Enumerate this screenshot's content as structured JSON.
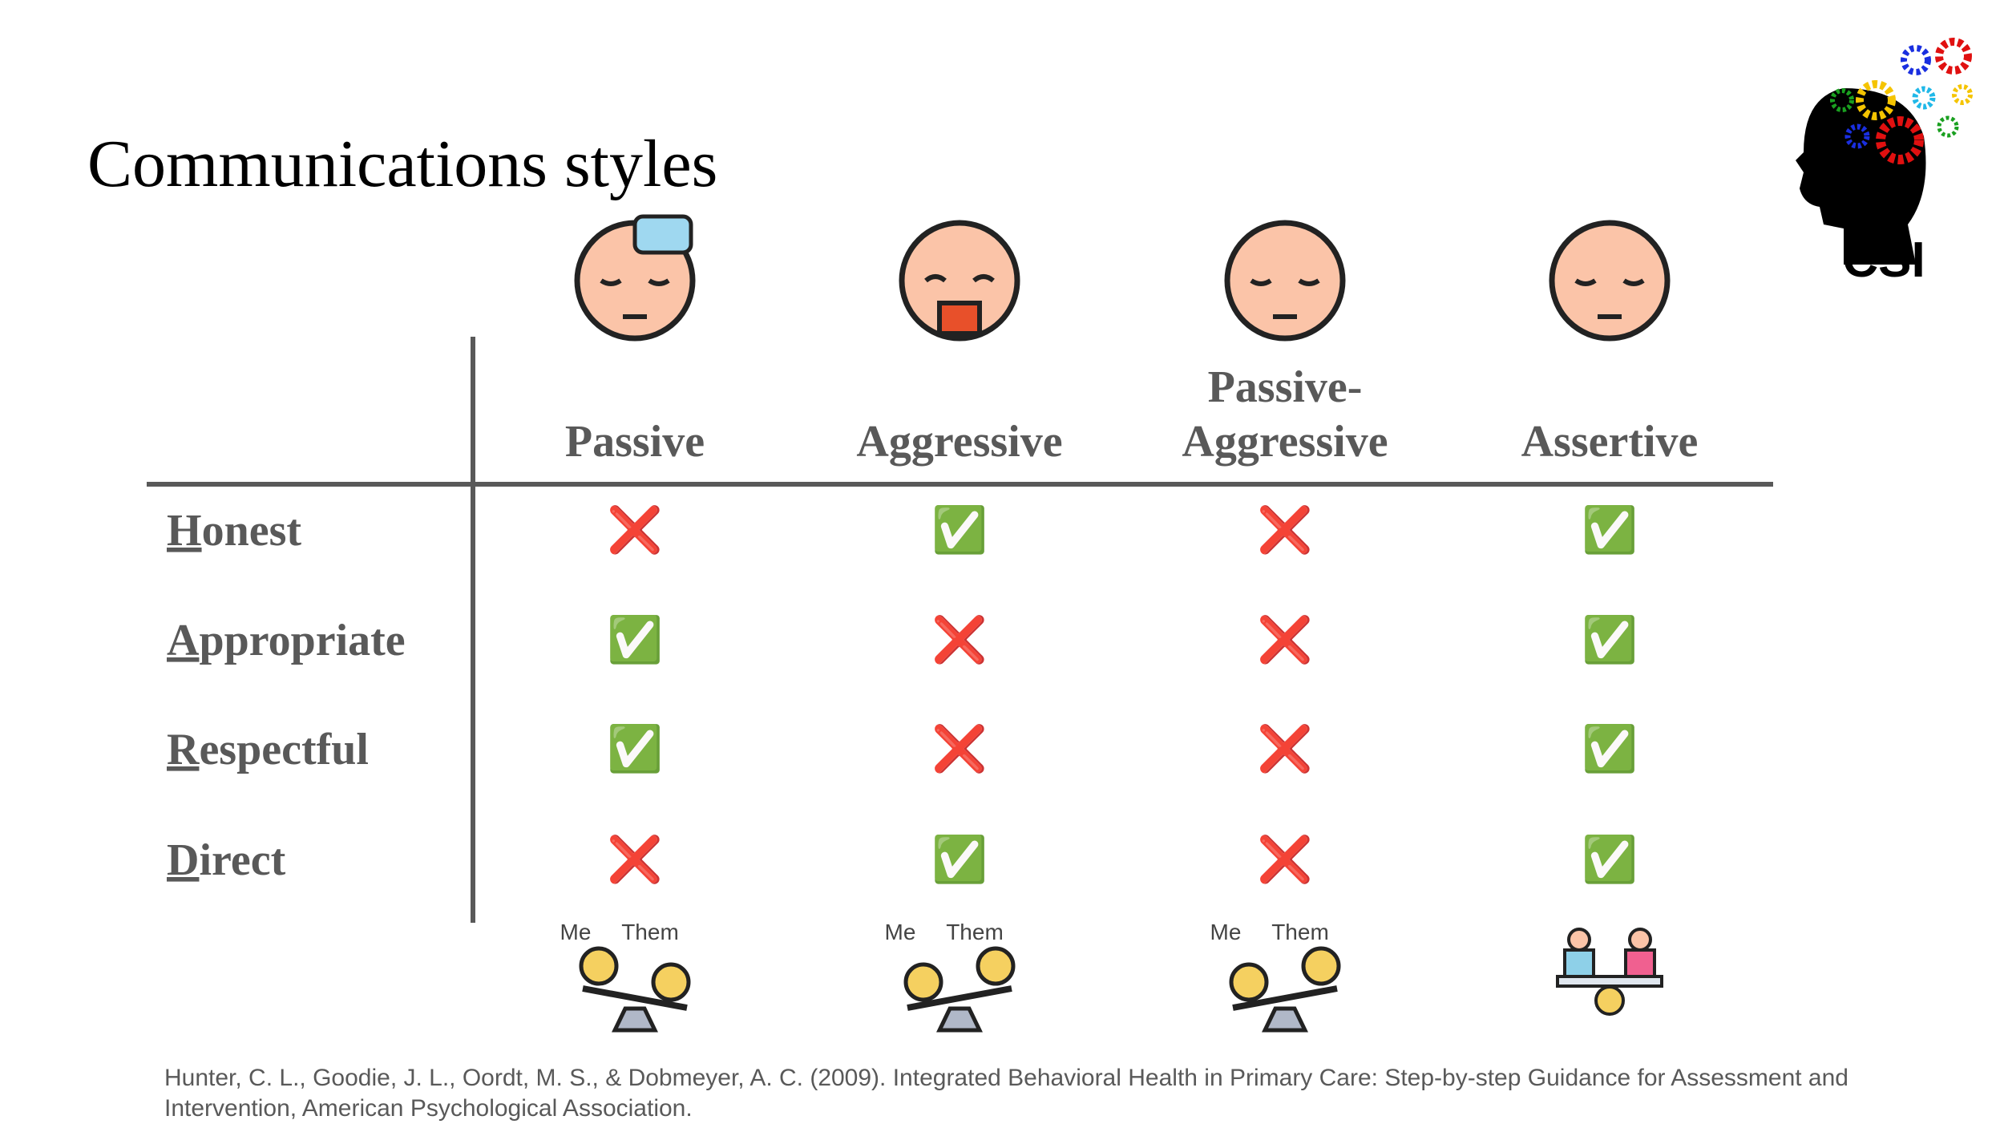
{
  "title": "Communications styles",
  "logo": "CSI",
  "table": {
    "columns": [
      [
        "Passive"
      ],
      [
        "Aggressive"
      ],
      [
        "Passive-",
        "Aggressive"
      ],
      [
        "Assertive"
      ]
    ],
    "rows": [
      {
        "initial": "H",
        "rest": "onest",
        "cells": [
          "❌",
          "✅",
          "❌",
          "✅"
        ]
      },
      {
        "initial": "A",
        "rest": "ppropriate",
        "cells": [
          "✅",
          "❌",
          "❌",
          "✅"
        ]
      },
      {
        "initial": "R",
        "rest": "espectful",
        "cells": [
          "✅",
          "❌",
          "❌",
          "✅"
        ]
      },
      {
        "initial": "D",
        "rest": "irect",
        "cells": [
          "❌",
          "✅",
          "❌",
          "✅"
        ]
      }
    ]
  },
  "balance": [
    {
      "me": "Me",
      "them": "Them"
    },
    {
      "me": "Me",
      "them": "Them"
    },
    {
      "me": "Me",
      "them": "Them"
    }
  ],
  "citation": [
    "Hunter, C. L., Goodie, J. L., Oordt, M. S., & Dobmeyer, A. C. (2009). Integrated Behavioral Health in Primary Care: Step-by-step Guidance for Assessment and",
    "Intervention, American Psychological Association."
  ]
}
